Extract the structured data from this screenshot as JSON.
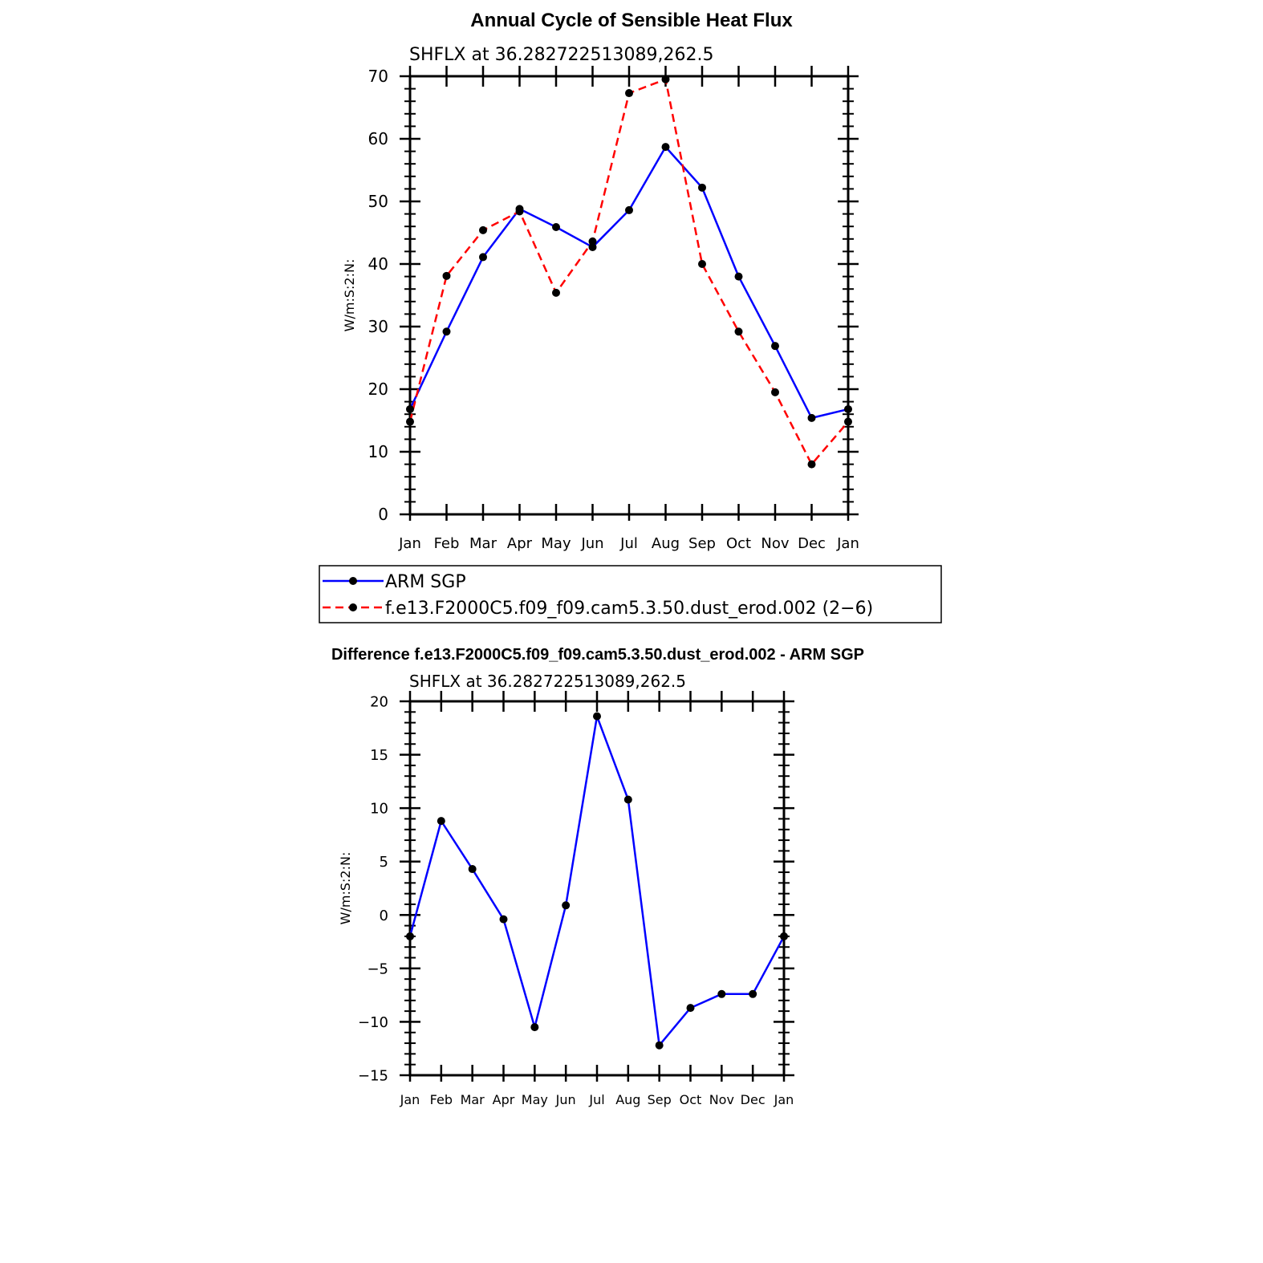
{
  "chart_data": [
    {
      "type": "line",
      "title": "Annual Cycle of Sensible Heat Flux",
      "subtitle": "SHFLX at 36.282722513089,262.5",
      "ylabel": "W/m:S:2:N:",
      "ylim": [
        0,
        70
      ],
      "yticks": [
        "0",
        "10",
        "20",
        "30",
        "40",
        "50",
        "60",
        "70"
      ],
      "categories": [
        "Jan",
        "Feb",
        "Mar",
        "Apr",
        "May",
        "Jun",
        "Jul",
        "Aug",
        "Sep",
        "Oct",
        "Nov",
        "Dec",
        "Jan"
      ],
      "legend": "below",
      "series": [
        {
          "name": "ARM SGP",
          "color": "#0000ff",
          "dash": "solid",
          "values": [
            16.8,
            29.2,
            41.1,
            48.8,
            45.9,
            42.7,
            48.6,
            58.7,
            52.2,
            38.0,
            26.9,
            15.4,
            16.8
          ]
        },
        {
          "name": "f.e13.F2000C5.f09_f09.cam5.3.50.dust_erod.002 (2−6)",
          "color": "#ff0000",
          "dash": "dashed",
          "values": [
            14.8,
            38.1,
            45.4,
            48.4,
            35.4,
            43.6,
            67.3,
            69.5,
            40.0,
            29.2,
            19.5,
            8.0,
            14.8
          ]
        }
      ]
    },
    {
      "type": "line",
      "title": "Difference f.e13.F2000C5.f09_f09.cam5.3.50.dust_erod.002 - ARM SGP",
      "subtitle": "SHFLX at 36.282722513089,262.5",
      "ylabel": "W/m:S:2:N:",
      "ylim": [
        -15,
        20
      ],
      "yticks": [
        "−15",
        "−10",
        "−5",
        "0",
        "5",
        "10",
        "15",
        "20"
      ],
      "categories": [
        "Jan",
        "Feb",
        "Mar",
        "Apr",
        "May",
        "Jun",
        "Jul",
        "Aug",
        "Sep",
        "Oct",
        "Nov",
        "Dec",
        "Jan"
      ],
      "series": [
        {
          "color": "#0000ff",
          "dash": "solid",
          "values": [
            -2.0,
            8.8,
            4.3,
            -0.4,
            -10.5,
            0.9,
            18.6,
            10.8,
            -12.2,
            -8.7,
            -7.4,
            -7.4,
            -2.0
          ]
        }
      ]
    }
  ]
}
